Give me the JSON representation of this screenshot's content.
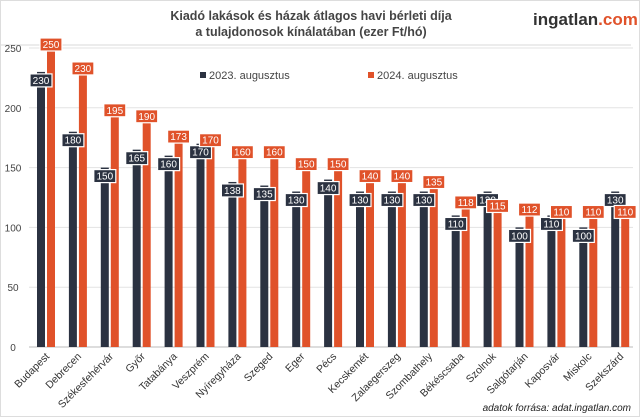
{
  "chart_data": {
    "type": "bar",
    "title": "Kiadó lakások és házak átlagos havi bérleti díja",
    "subtitle": "a tulajdonosok kínálatában (ezer Ft/hó)",
    "logo": {
      "text": "ingatlan",
      "suffix": ".com"
    },
    "source": "adatok forrása: adat.ingatlan.com",
    "categories": [
      "Budapest",
      "Debrecen",
      "Székesfehérvár",
      "Győr",
      "Tatabánya",
      "Veszprém",
      "Nyíregyháza",
      "Szeged",
      "Eger",
      "Pécs",
      "Kecskemét",
      "Zalaegerszeg",
      "Szombathely",
      "Békéscsaba",
      "Szolnok",
      "Salgótarján",
      "Kaposvár",
      "Miskolc",
      "Szekszárd"
    ],
    "series": [
      {
        "name": "2023. augusztus",
        "color": "#2b3241",
        "values": [
          230,
          180,
          150,
          165,
          160,
          170,
          138,
          135,
          130,
          140,
          130,
          130,
          130,
          110,
          130,
          100,
          110,
          100,
          130
        ]
      },
      {
        "name": "2024. augusztus",
        "color": "#e0522a",
        "values": [
          250,
          230,
          195,
          190,
          173,
          170,
          160,
          160,
          150,
          150,
          140,
          140,
          135,
          118,
          115,
          112,
          110,
          110,
          110
        ]
      }
    ],
    "ylim": [
      0,
      250
    ],
    "yticks": [
      0,
      50,
      100,
      150,
      200,
      250
    ],
    "grid": true,
    "legend": "top"
  }
}
